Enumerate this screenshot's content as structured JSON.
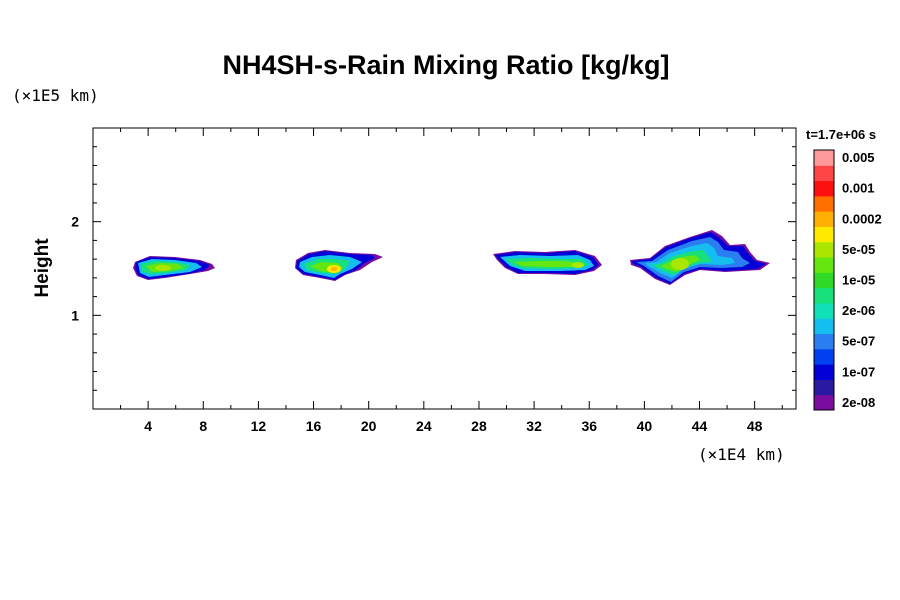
{
  "chart_data": {
    "type": "heatmap",
    "title": "NH4SH-s-Rain Mixing Ratio [kg/kg]",
    "xlabel": "",
    "ylabel": "Height",
    "x_unit": "(×1E4 km)",
    "y_unit": "(×1E5 km)",
    "timestamp": "t=1.7e+06 s",
    "xlim": [
      0,
      51
    ],
    "ylim": [
      0,
      3
    ],
    "x_ticks": [
      4,
      8,
      12,
      16,
      20,
      24,
      28,
      32,
      36,
      40,
      44,
      48
    ],
    "y_ticks": [
      1,
      2
    ],
    "x_tick_labels": [
      "4",
      "8",
      "12",
      "16",
      "20",
      "24",
      "28",
      "32",
      "36",
      "40",
      "44",
      "48"
    ],
    "y_tick_labels": [
      "1",
      "2"
    ],
    "colorbar": {
      "colors": [
        "#7a0da0",
        "#2a1aa0",
        "#0000d6",
        "#0040f0",
        "#2a7ef0",
        "#14bff0",
        "#10e0b8",
        "#18e07a",
        "#30d828",
        "#66e610",
        "#aae600",
        "#ffea00",
        "#ffb000",
        "#ff7000",
        "#ff1010",
        "#ff4646",
        "#ff9a9a"
      ],
      "labels": [
        "2e-08",
        "1e-07",
        "5e-07",
        "2e-06",
        "1e-05",
        "5e-05",
        "0.0002",
        "0.001",
        "0.005"
      ]
    },
    "regions": [
      {
        "x_range": [
          3.2,
          8.6
        ],
        "y_range": [
          1.37,
          1.65
        ],
        "max_level": "5e-05"
      },
      {
        "x_range": [
          14.6,
          20.2
        ],
        "y_range": [
          1.37,
          1.68
        ],
        "max_level": "0.0002"
      },
      {
        "x_range": [
          28.8,
          36.6
        ],
        "y_range": [
          1.42,
          1.67
        ],
        "max_level": "5e-05"
      },
      {
        "x_range": [
          38.8,
          49.4
        ],
        "y_range": [
          1.32,
          1.9
        ],
        "max_level": "5e-05"
      }
    ]
  }
}
